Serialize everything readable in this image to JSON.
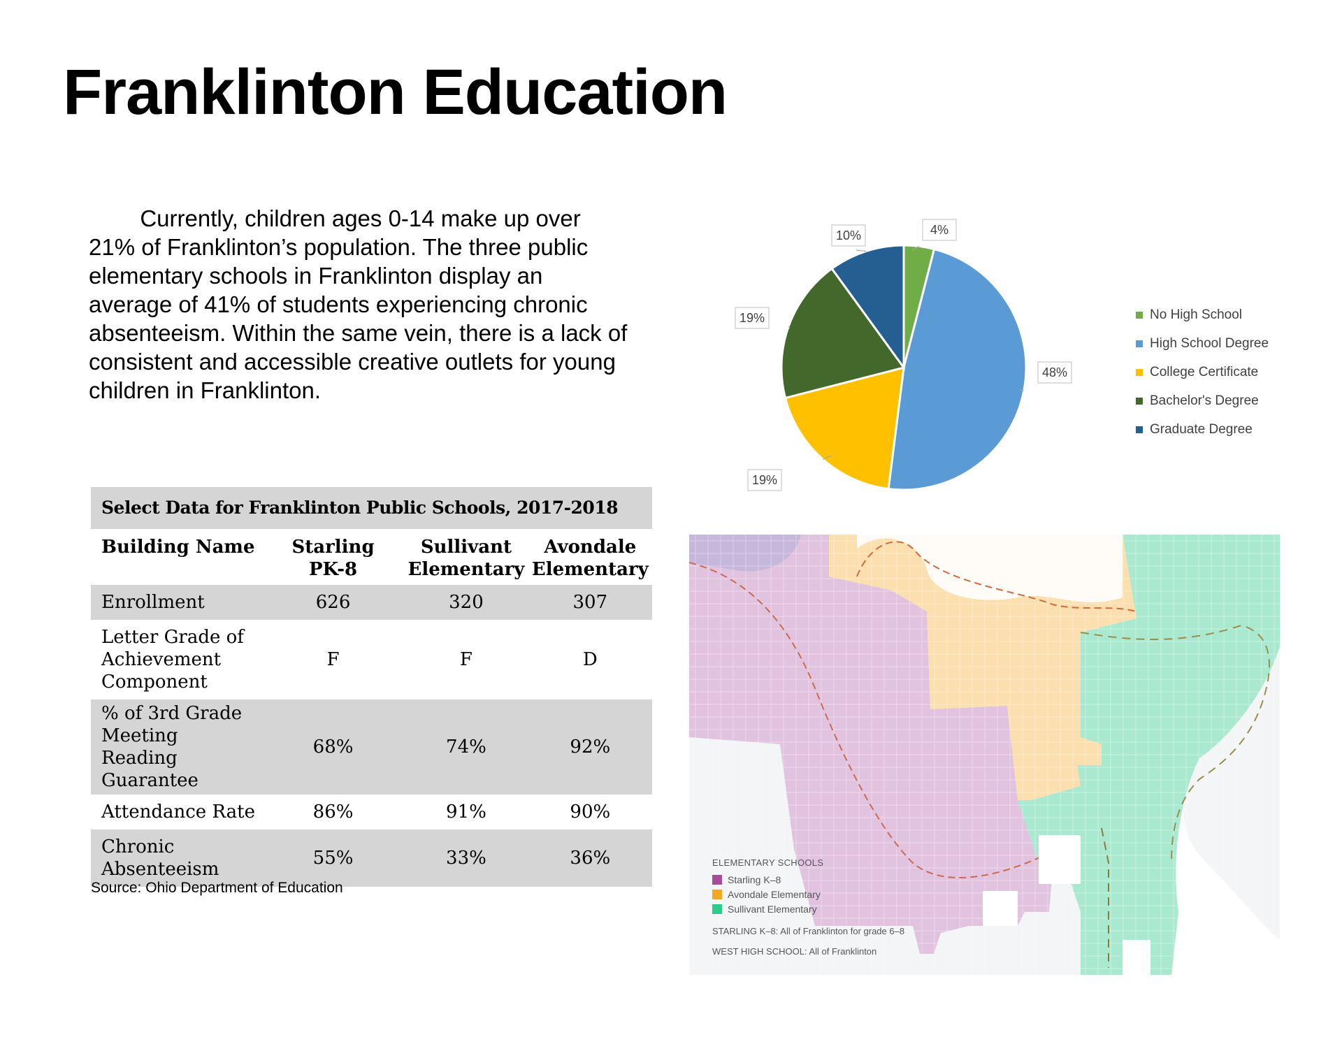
{
  "title": "Franklinton Education",
  "intro": {
    "lines": [
      "        Currently, children ages 0-14 make up over",
      "21% of Franklinton’s population. The three public",
      "elementary schools in Franklinton display an",
      "average of 41% of students experiencing chronic",
      "absenteeism. Within the same vein, there is a lack of",
      "consistent and accessible creative outlets for young",
      "children in Franklinton."
    ]
  },
  "table": {
    "title": "Select Data for Franklinton Public Schools, 2017-2018",
    "headers": [
      "Building Name",
      "Starling PK-8",
      "Sullivant Elementary",
      "Avondale Elementary"
    ],
    "rows": [
      [
        "Enrollment",
        "626",
        "320",
        "307"
      ],
      [
        "Letter Grade of Achievement Component",
        "F",
        "F",
        "D"
      ],
      [
        "% of 3rd Grade Meeting Reading Guarantee",
        "68%",
        "74%",
        "92%"
      ],
      [
        "Attendance Rate",
        "86%",
        "91%",
        "90%"
      ],
      [
        "Chronic Absenteeism",
        "55%",
        "33%",
        "36%"
      ]
    ],
    "source": "Source: Ohio Department of Education"
  },
  "chart_data": {
    "type": "pie",
    "categories": [
      "No High School",
      "High School Degree",
      "College Certificate",
      "Bachelor's Degree",
      "Graduate Degree"
    ],
    "values": [
      4,
      48,
      19,
      19,
      10
    ],
    "labels": [
      "4%",
      "48%",
      "19%",
      "19%",
      "10%"
    ],
    "colors": [
      "#70ad47",
      "#5b9bd5",
      "#ffc000",
      "#43682b",
      "#255e91"
    ],
    "legend_position": "right"
  },
  "map": {
    "legend_title": "ELEMENTARY SCHOOLS",
    "items": [
      {
        "label": "Starling K–8",
        "color": "#a64d99"
      },
      {
        "label": "Avondale Elementary",
        "color": "#f5a623"
      },
      {
        "label": "Sullivant Elementary",
        "color": "#2ecc8b"
      }
    ],
    "note1": "STARLING K–8: All of Franklinton for grade 6–8",
    "note2": "WEST HIGH SCHOOL: All of Franklinton"
  }
}
